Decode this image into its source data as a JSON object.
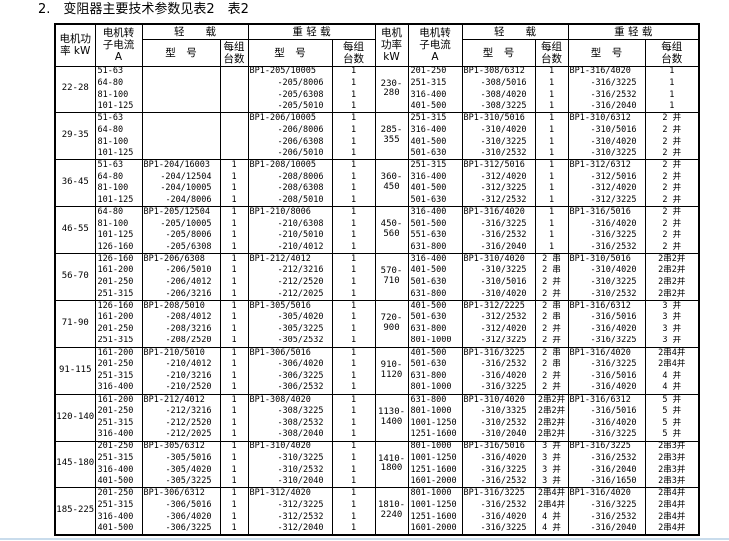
{
  "page": {
    "title": "2.　变阻器主要技术参数见表2　表2"
  },
  "table": {
    "headers": {
      "power_left": "电机功\n率 kW",
      "power_right": "电机\n功率\nkW",
      "current": "电机转\n子电流\nA",
      "light_load": "轻　　载",
      "heavy_light_load": "重 轻 载",
      "model": "型　号",
      "units_per_group": "每组\n台数"
    },
    "groups_left": [
      {
        "power": "22-28",
        "rows": [
          {
            "current": "51-63",
            "light_model": "",
            "light_units": "",
            "heavy_model": "BP1-205/10005",
            "heavy_units": "1"
          },
          {
            "current": "64-80",
            "light_model": "",
            "light_units": "",
            "heavy_model": "-205/8006",
            "heavy_units": "1"
          },
          {
            "current": "81-100",
            "light_model": "",
            "light_units": "",
            "heavy_model": "-205/6308",
            "heavy_units": "1"
          },
          {
            "current": "101-125",
            "light_model": "",
            "light_units": "",
            "heavy_model": "-205/5010",
            "heavy_units": "1"
          }
        ]
      },
      {
        "power": "29-35",
        "rows": [
          {
            "current": "51-63",
            "light_model": "",
            "light_units": "",
            "heavy_model": "BP1-206/10005",
            "heavy_units": "1"
          },
          {
            "current": "64-80",
            "light_model": "",
            "light_units": "",
            "heavy_model": "-206/8006",
            "heavy_units": "1"
          },
          {
            "current": "81-100",
            "light_model": "",
            "light_units": "",
            "heavy_model": "-206/6308",
            "heavy_units": "1"
          },
          {
            "current": "101-125",
            "light_model": "",
            "light_units": "",
            "heavy_model": "-206/5010",
            "heavy_units": "1"
          }
        ]
      },
      {
        "power": "36-45",
        "rows": [
          {
            "current": "51-63",
            "light_model": "BP1-204/16003",
            "light_units": "1",
            "heavy_model": "BP1-208/10005",
            "heavy_units": "1"
          },
          {
            "current": "64-80",
            "light_model": "-204/12504",
            "light_units": "1",
            "heavy_model": "-208/8006",
            "heavy_units": "1"
          },
          {
            "current": "81-100",
            "light_model": "-204/10005",
            "light_units": "1",
            "heavy_model": "-208/6308",
            "heavy_units": "1"
          },
          {
            "current": "101-125",
            "light_model": "-204/8006",
            "light_units": "1",
            "heavy_model": "-208/5010",
            "heavy_units": "1"
          }
        ]
      },
      {
        "power": "46-55",
        "rows": [
          {
            "current": "64-80",
            "light_model": "BP1-205/12504",
            "light_units": "1",
            "heavy_model": "BP1-210/8006",
            "heavy_units": "1"
          },
          {
            "current": "81-100",
            "light_model": "-205/10005",
            "light_units": "1",
            "heavy_model": "-210/6308",
            "heavy_units": "1"
          },
          {
            "current": "101-125",
            "light_model": "-205/8006",
            "light_units": "1",
            "heavy_model": "-210/5010",
            "heavy_units": "1"
          },
          {
            "current": "126-160",
            "light_model": "-205/6308",
            "light_units": "1",
            "heavy_model": "-210/4012",
            "heavy_units": "1"
          }
        ]
      },
      {
        "power": "56-70",
        "rows": [
          {
            "current": "126-160",
            "light_model": "BP1-206/6308",
            "light_units": "1",
            "heavy_model": "BP1-212/4012",
            "heavy_units": "1"
          },
          {
            "current": "161-200",
            "light_model": "-206/5010",
            "light_units": "1",
            "heavy_model": "-212/3216",
            "heavy_units": "1"
          },
          {
            "current": "201-250",
            "light_model": "-206/4012",
            "light_units": "1",
            "heavy_model": "-212/2520",
            "heavy_units": "1"
          },
          {
            "current": "251-315",
            "light_model": "-206/3216",
            "light_units": "1",
            "heavy_model": "-212/2025",
            "heavy_units": "1"
          }
        ]
      },
      {
        "power": "71-90",
        "rows": [
          {
            "current": "126-160",
            "light_model": "BP1-208/5010",
            "light_units": "1",
            "heavy_model": "BP1-305/5016",
            "heavy_units": "1"
          },
          {
            "current": "161-200",
            "light_model": "-208/4012",
            "light_units": "1",
            "heavy_model": "-305/4020",
            "heavy_units": "1"
          },
          {
            "current": "201-250",
            "light_model": "-208/3216",
            "light_units": "1",
            "heavy_model": "-305/3225",
            "heavy_units": "1"
          },
          {
            "current": "251-315",
            "light_model": "-208/2520",
            "light_units": "1",
            "heavy_model": "-305/2532",
            "heavy_units": "1"
          }
        ]
      },
      {
        "power": "91-115",
        "rows": [
          {
            "current": "161-200",
            "light_model": "BP1-210/5010",
            "light_units": "1",
            "heavy_model": "BP1-306/5016",
            "heavy_units": "1"
          },
          {
            "current": "201-250",
            "light_model": "-210/4012",
            "light_units": "1",
            "heavy_model": "-306/4020",
            "heavy_units": "1"
          },
          {
            "current": "251-315",
            "light_model": "-210/3216",
            "light_units": "1",
            "heavy_model": "-306/3225",
            "heavy_units": "1"
          },
          {
            "current": "316-400",
            "light_model": "-210/2520",
            "light_units": "1",
            "heavy_model": "-306/2532",
            "heavy_units": "1"
          }
        ]
      },
      {
        "power": "120-140",
        "rows": [
          {
            "current": "161-200",
            "light_model": "BP1-212/4012",
            "light_units": "1",
            "heavy_model": "BP1-308/4020",
            "heavy_units": "1"
          },
          {
            "current": "201-250",
            "light_model": "-212/3216",
            "light_units": "1",
            "heavy_model": "-308/3225",
            "heavy_units": "1"
          },
          {
            "current": "251-315",
            "light_model": "-212/2520",
            "light_units": "1",
            "heavy_model": "-308/2532",
            "heavy_units": "1"
          },
          {
            "current": "316-400",
            "light_model": "-212/2025",
            "light_units": "1",
            "heavy_model": "-308/2040",
            "heavy_units": "1"
          }
        ]
      },
      {
        "power": "145-180",
        "rows": [
          {
            "current": "201-250",
            "light_model": "BP1-305/6312",
            "light_units": "1",
            "heavy_model": "BP1-310/4020",
            "heavy_units": "1"
          },
          {
            "current": "251-315",
            "light_model": "-305/5016",
            "light_units": "1",
            "heavy_model": "-310/3225",
            "heavy_units": "1"
          },
          {
            "current": "316-400",
            "light_model": "-305/4020",
            "light_units": "1",
            "heavy_model": "-310/2532",
            "heavy_units": "1"
          },
          {
            "current": "401-500",
            "light_model": "-305/3225",
            "light_units": "1",
            "heavy_model": "-310/2040",
            "heavy_units": "1"
          }
        ]
      },
      {
        "power": "185-225",
        "rows": [
          {
            "current": "201-250",
            "light_model": "BP1-306/6312",
            "light_units": "1",
            "heavy_model": "BP1-312/4020",
            "heavy_units": "1"
          },
          {
            "current": "251-315",
            "light_model": "-306/5016",
            "light_units": "1",
            "heavy_model": "-312/3225",
            "heavy_units": "1"
          },
          {
            "current": "316-400",
            "light_model": "-306/4020",
            "light_units": "1",
            "heavy_model": "-312/2532",
            "heavy_units": "1"
          },
          {
            "current": "401-500",
            "light_model": "-306/3225",
            "light_units": "1",
            "heavy_model": "-312/2040",
            "heavy_units": "1"
          }
        ]
      }
    ],
    "groups_right": [
      {
        "power": "230-\n280",
        "rows": [
          {
            "current": "201-250",
            "light_model": "BP1-308/6312",
            "light_units": "1",
            "heavy_model": "BP1-316/4020",
            "heavy_units": "1"
          },
          {
            "current": "251-315",
            "light_model": "-308/5016",
            "light_units": "1",
            "heavy_model": "-316/3225",
            "heavy_units": "1"
          },
          {
            "current": "316-400",
            "light_model": "-308/4020",
            "light_units": "1",
            "heavy_model": "-316/2532",
            "heavy_units": "1"
          },
          {
            "current": "401-500",
            "light_model": "-308/3225",
            "light_units": "1",
            "heavy_model": "-316/2040",
            "heavy_units": "1"
          }
        ]
      },
      {
        "power": "285-\n355",
        "rows": [
          {
            "current": "251-315",
            "light_model": "BP1-310/5016",
            "light_units": "1",
            "heavy_model": "BP1-310/6312",
            "heavy_units": "2 并"
          },
          {
            "current": "316-400",
            "light_model": "-310/4020",
            "light_units": "1",
            "heavy_model": "-310/5016",
            "heavy_units": "2 并"
          },
          {
            "current": "401-500",
            "light_model": "-310/3225",
            "light_units": "1",
            "heavy_model": "-310/4020",
            "heavy_units": "2 并"
          },
          {
            "current": "501-630",
            "light_model": "-310/2532",
            "light_units": "1",
            "heavy_model": "-310/3225",
            "heavy_units": "2 并"
          }
        ]
      },
      {
        "power": "360-\n450",
        "rows": [
          {
            "current": "251-315",
            "light_model": "BP1-312/5016",
            "light_units": "1",
            "heavy_model": "BP1-312/6312",
            "heavy_units": "2 并"
          },
          {
            "current": "316-400",
            "light_model": "-312/4020",
            "light_units": "1",
            "heavy_model": "-312/5016",
            "heavy_units": "2 并"
          },
          {
            "current": "401-500",
            "light_model": "-312/3225",
            "light_units": "1",
            "heavy_model": "-312/4020",
            "heavy_units": "2 并"
          },
          {
            "current": "501-630",
            "light_model": "-312/2532",
            "light_units": "1",
            "heavy_model": "-312/3225",
            "heavy_units": "2 并"
          }
        ]
      },
      {
        "power": "450-\n560",
        "rows": [
          {
            "current": "316-400",
            "light_model": "BP1-316/4020",
            "light_units": "1",
            "heavy_model": "BP1-316/5016",
            "heavy_units": "2 并"
          },
          {
            "current": "501-500",
            "light_model": "-316/3225",
            "light_units": "1",
            "heavy_model": "-316/4020",
            "heavy_units": "2 并"
          },
          {
            "current": "551-630",
            "light_model": "-316/2532",
            "light_units": "1",
            "heavy_model": "-316/3225",
            "heavy_units": "2 并"
          },
          {
            "current": "631-800",
            "light_model": "-316/2040",
            "light_units": "1",
            "heavy_model": "-316/2532",
            "heavy_units": "2 并"
          }
        ]
      },
      {
        "power": "570-\n710",
        "rows": [
          {
            "current": "316-400",
            "light_model": "BP1-310/4020",
            "light_units": "2 串",
            "heavy_model": "BP1-310/5016",
            "heavy_units": "2串2并"
          },
          {
            "current": "401-500",
            "light_model": "-310/3225",
            "light_units": "2 串",
            "heavy_model": "-310/4020",
            "heavy_units": "2串2并"
          },
          {
            "current": "501-630",
            "light_model": "-310/5016",
            "light_units": "2 并",
            "heavy_model": "-310/3225",
            "heavy_units": "2串2并"
          },
          {
            "current": "631-800",
            "light_model": "-310/4020",
            "light_units": "2 并",
            "heavy_model": "-310/2532",
            "heavy_units": "2串2并"
          }
        ]
      },
      {
        "power": "720-\n900",
        "rows": [
          {
            "current": "401-500",
            "light_model": "BP1-312/2225",
            "light_units": "2 串",
            "heavy_model": "BP1-316/6312",
            "heavy_units": "3 并"
          },
          {
            "current": "501-630",
            "light_model": "-312/2532",
            "light_units": "2 串",
            "heavy_model": "-316/5016",
            "heavy_units": "3 并"
          },
          {
            "current": "631-800",
            "light_model": "-312/4020",
            "light_units": "2 并",
            "heavy_model": "-316/4020",
            "heavy_units": "3 并"
          },
          {
            "current": "801-1000",
            "light_model": "-312/3225",
            "light_units": "2 并",
            "heavy_model": "-316/3225",
            "heavy_units": "3 并"
          }
        ]
      },
      {
        "power": "910-\n1120",
        "rows": [
          {
            "current": "401-500",
            "light_model": "BP1-316/3225",
            "light_units": "2 串",
            "heavy_model": "BP1-316/4020",
            "heavy_units": "2串4并"
          },
          {
            "current": "501-630",
            "light_model": "-316/2532",
            "light_units": "2 串",
            "heavy_model": "-316/3225",
            "heavy_units": "2串4并"
          },
          {
            "current": "631-800",
            "light_model": "-316/4020",
            "light_units": "2 并",
            "heavy_model": "-316/5016",
            "heavy_units": "4 并"
          },
          {
            "current": "801-1000",
            "light_model": "-316/3225",
            "light_units": "2 并",
            "heavy_model": "-316/4020",
            "heavy_units": "4 并"
          }
        ]
      },
      {
        "power": "1130-\n1400",
        "rows": [
          {
            "current": "631-800",
            "light_model": "BP1-310/4020",
            "light_units": "2串2并",
            "heavy_model": "BP1-316/6312",
            "heavy_units": "5 并"
          },
          {
            "current": "801-1000",
            "light_model": "-310/3325",
            "light_units": "2串2并",
            "heavy_model": "-316/5016",
            "heavy_units": "5 并"
          },
          {
            "current": "1001-1250",
            "light_model": "-310/2532",
            "light_units": "2串2并",
            "heavy_model": "-316/4020",
            "heavy_units": "5 并"
          },
          {
            "current": "1251-1600",
            "light_model": "-310/2040",
            "light_units": "2串2并",
            "heavy_model": "-316/3225",
            "heavy_units": "5 并"
          }
        ]
      },
      {
        "power": "1410-\n1800",
        "rows": [
          {
            "current": "801-1000",
            "light_model": "BP1-316/5016",
            "light_units": "3 并",
            "heavy_model": "BP1-316/3225",
            "heavy_units": "2串3并"
          },
          {
            "current": "1001-1250",
            "light_model": "-316/4020",
            "light_units": "3 并",
            "heavy_model": "-316/2532",
            "heavy_units": "2串3并"
          },
          {
            "current": "1251-1600",
            "light_model": "-316/3225",
            "light_units": "3 并",
            "heavy_model": "-316/2040",
            "heavy_units": "2串3并"
          },
          {
            "current": "1601-2000",
            "light_model": "-316/2532",
            "light_units": "3 并",
            "heavy_model": "-316/1650",
            "heavy_units": "2串3并"
          }
        ]
      },
      {
        "power": "1810-\n2240",
        "rows": [
          {
            "current": "801-1000",
            "light_model": "BP1-316/3225",
            "light_units": "2串4并",
            "heavy_model": "BP1-316/4020",
            "heavy_units": "2串4并"
          },
          {
            "current": "1001-1250",
            "light_model": "-316/2532",
            "light_units": "2串4并",
            "heavy_model": "-316/3225",
            "heavy_units": "2串4并"
          },
          {
            "current": "1251-1600",
            "light_model": "-316/4020",
            "light_units": "4 并",
            "heavy_model": "-316/2532",
            "heavy_units": "2串4并"
          },
          {
            "current": "1601-2000",
            "light_model": "-316/3225",
            "light_units": "4 并",
            "heavy_model": "-316/2040",
            "heavy_units": "2串4并"
          }
        ]
      }
    ]
  }
}
